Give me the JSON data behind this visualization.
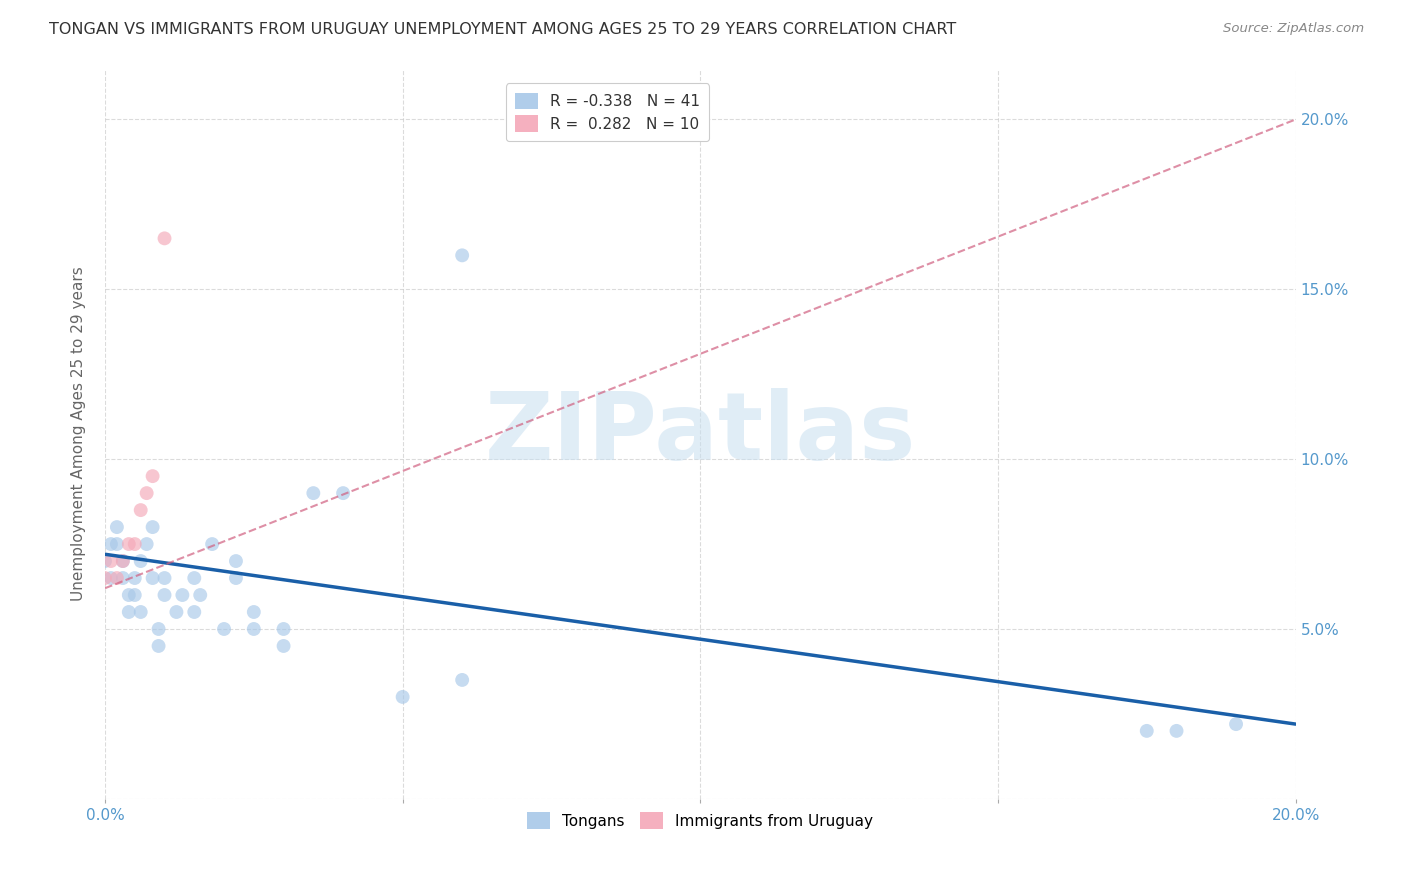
{
  "title": "TONGAN VS IMMIGRANTS FROM URUGUAY UNEMPLOYMENT AMONG AGES 25 TO 29 YEARS CORRELATION CHART",
  "source": "Source: ZipAtlas.com",
  "ylabel": "Unemployment Among Ages 25 to 29 years",
  "xlim": [
    0.0,
    0.2
  ],
  "ylim": [
    0.0,
    0.215
  ],
  "xticks": [
    0.0,
    0.05,
    0.1,
    0.15,
    0.2
  ],
  "yticks": [
    0.0,
    0.05,
    0.1,
    0.15,
    0.2
  ],
  "xticklabels_edge": [
    "0.0%",
    "",
    "",
    "",
    "20.0%"
  ],
  "right_yticklabels": [
    "",
    "5.0%",
    "10.0%",
    "15.0%",
    "20.0%"
  ],
  "legend_line1": "R = -0.338   N = 41",
  "legend_line2": "R =  0.282   N = 10",
  "tongans_color": "#a8c8e8",
  "uruguay_color": "#f4a8b8",
  "tonga_line_color": "#1a5fa8",
  "uruguay_line_color": "#d06080",
  "grid_color": "#cccccc",
  "title_color": "#333333",
  "axis_label_color": "#666666",
  "tick_color": "#5599cc",
  "marker_size": 100,
  "scatter_alpha": 0.65,
  "watermark_color": "#c8dff0",
  "tongans_x": [
    0.0,
    0.001,
    0.001,
    0.002,
    0.002,
    0.003,
    0.003,
    0.004,
    0.004,
    0.005,
    0.005,
    0.006,
    0.006,
    0.007,
    0.008,
    0.008,
    0.009,
    0.009,
    0.01,
    0.01,
    0.012,
    0.013,
    0.015,
    0.015,
    0.016,
    0.018,
    0.02,
    0.022,
    0.022,
    0.025,
    0.025,
    0.03,
    0.03,
    0.035,
    0.04,
    0.05,
    0.06,
    0.06,
    0.175,
    0.18,
    0.19
  ],
  "tongans_y": [
    0.07,
    0.065,
    0.075,
    0.08,
    0.075,
    0.065,
    0.07,
    0.055,
    0.06,
    0.06,
    0.065,
    0.055,
    0.07,
    0.075,
    0.065,
    0.08,
    0.045,
    0.05,
    0.06,
    0.065,
    0.055,
    0.06,
    0.055,
    0.065,
    0.06,
    0.075,
    0.05,
    0.065,
    0.07,
    0.05,
    0.055,
    0.045,
    0.05,
    0.09,
    0.09,
    0.03,
    0.035,
    0.16,
    0.02,
    0.02,
    0.022
  ],
  "uruguay_x": [
    0.0,
    0.001,
    0.002,
    0.003,
    0.004,
    0.005,
    0.006,
    0.007,
    0.008,
    0.01
  ],
  "uruguay_y": [
    0.065,
    0.07,
    0.065,
    0.07,
    0.075,
    0.075,
    0.085,
    0.09,
    0.095,
    0.165
  ],
  "tonga_line_x": [
    0.0,
    0.2
  ],
  "tonga_line_y": [
    0.072,
    0.022
  ],
  "uruguay_line_x": [
    0.0,
    0.2
  ],
  "uruguay_line_y": [
    0.062,
    0.2
  ],
  "background_color": "#ffffff"
}
